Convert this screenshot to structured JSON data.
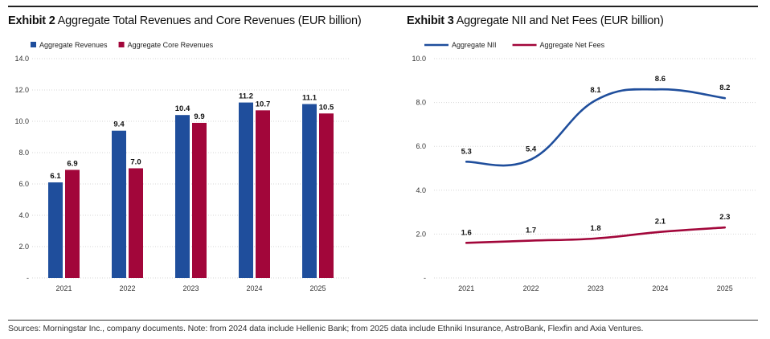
{
  "footnote": "Sources: Morningstar Inc., company documents. Note: from 2024 data include Hellenic Bank; from 2025 data include Ethniki Insurance, AstroBank, Flexfin and Axia Ventures.",
  "colors": {
    "blue": "#1f4e9c",
    "red": "#a2063a",
    "grid": "#d6d6d6",
    "axis": "#999999"
  },
  "chart_data": [
    {
      "type": "bar",
      "exhibit_label": "Exhibit 2",
      "title": "Aggregate Total Revenues and Core Revenues (EUR billion)",
      "categories": [
        "2021",
        "2022",
        "2023",
        "2024",
        "2025"
      ],
      "series": [
        {
          "name": "Aggregate Revenues",
          "values": [
            6.1,
            9.4,
            10.4,
            11.2,
            11.1
          ],
          "labels": [
            "6.1",
            "9.4",
            "10.4",
            "11.2",
            "11.1"
          ]
        },
        {
          "name": "Aggregate Core Revenues",
          "values": [
            6.9,
            7.0,
            9.9,
            10.7,
            10.5
          ],
          "labels": [
            "6.9",
            "7.0",
            "9.9",
            "10.7",
            "10.5"
          ]
        }
      ],
      "ylim": [
        0,
        14
      ],
      "yticks": [
        0,
        2,
        4,
        6,
        8,
        10,
        12,
        14
      ],
      "ytick_labels": [
        "-",
        "2.0",
        "4.0",
        "6.0",
        "8.0",
        "10.0",
        "12.0",
        "14.0"
      ],
      "legend": "top-left",
      "grid": true
    },
    {
      "type": "line",
      "exhibit_label": "Exhibit 3",
      "title": "Aggregate NII and Net Fees (EUR billion)",
      "categories": [
        "2021",
        "2022",
        "2023",
        "2024",
        "2025"
      ],
      "series": [
        {
          "name": "Aggregate NII",
          "values": [
            5.3,
            5.4,
            8.1,
            8.6,
            8.2
          ],
          "labels": [
            "5.3",
            "5.4",
            "8.1",
            "8.6",
            "8.2"
          ]
        },
        {
          "name": "Aggregate Net Fees",
          "values": [
            1.6,
            1.7,
            1.8,
            2.1,
            2.3
          ],
          "labels": [
            "1.6",
            "1.7",
            "1.8",
            "2.1",
            "2.3"
          ]
        }
      ],
      "ylim": [
        0,
        10
      ],
      "yticks": [
        0,
        2,
        4,
        6,
        8,
        10
      ],
      "ytick_labels": [
        "-",
        "2.0",
        "4.0",
        "6.0",
        "8.0",
        "10.0"
      ],
      "legend": "top-left",
      "grid": true
    }
  ]
}
